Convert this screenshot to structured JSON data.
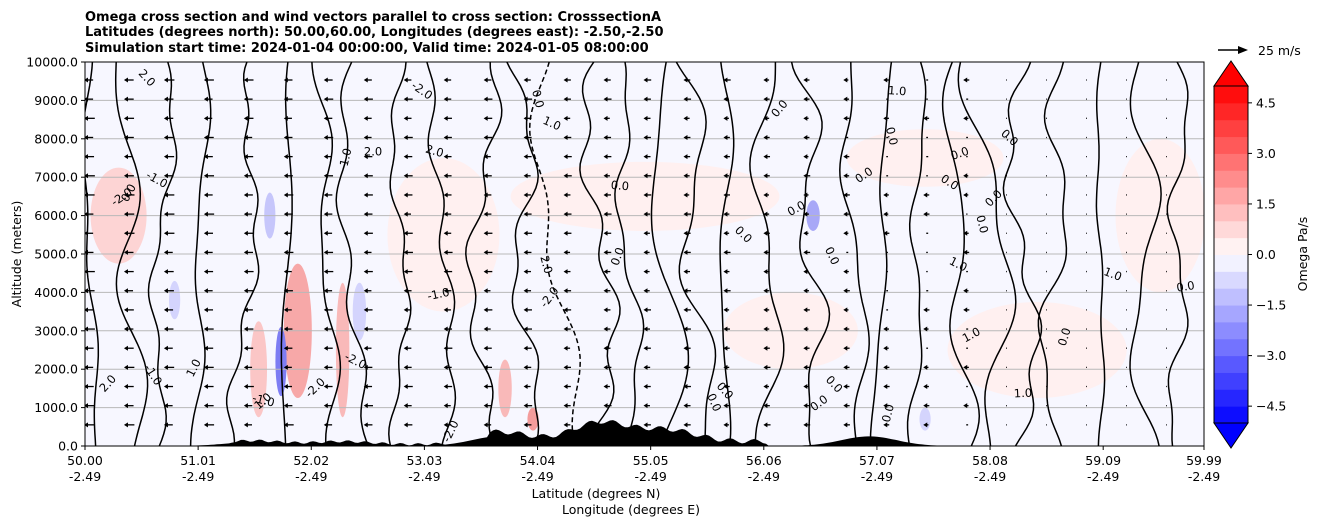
{
  "chart_data": {
    "type": "contourf",
    "title_lines": [
      "Omega cross section and wind vectors parallel to cross section: CrosssectionA",
      "Latitudes (degrees north): 50.00,60.00, Longitudes (degrees east): -2.50,-2.50",
      "Simulation start time: 2024-01-04 00:00:00, Valid time: 2024-01-05 08:00:00"
    ],
    "x_ticks": [
      {
        "lat": "50.00",
        "lon": "-2.49"
      },
      {
        "lat": "51.01",
        "lon": "-2.49"
      },
      {
        "lat": "52.02",
        "lon": "-2.49"
      },
      {
        "lat": "53.03",
        "lon": "-2.49"
      },
      {
        "lat": "54.04",
        "lon": "-2.49"
      },
      {
        "lat": "55.05",
        "lon": "-2.49"
      },
      {
        "lat": "56.06",
        "lon": "-2.49"
      },
      {
        "lat": "57.07",
        "lon": "-2.49"
      },
      {
        "lat": "58.08",
        "lon": "-2.49"
      },
      {
        "lat": "59.09",
        "lon": "-2.49"
      },
      {
        "lat": "59.99",
        "lon": "-2.49"
      }
    ],
    "x_range": [
      50.0,
      59.99
    ],
    "xlabel_1": "Latitude (degrees N)",
    "xlabel_2": "Longitude (degrees E)",
    "ylabel": "Altitude (meters)",
    "y_ticks": [
      "0.0",
      "1000.0",
      "2000.0",
      "3000.0",
      "4000.0",
      "5000.0",
      "6000.0",
      "7000.0",
      "8000.0",
      "9000.0",
      "10000.0"
    ],
    "ylim": [
      0,
      10000
    ],
    "grid": "horizontal",
    "colorbar": {
      "label": "Omega Pa/s",
      "range": [
        -5.0,
        5.0
      ],
      "ticks": [
        "4.5",
        "3.0",
        "1.5",
        "0.0",
        "−1.5",
        "−3.0",
        "−4.5"
      ],
      "tick_values": [
        4.5,
        3.0,
        1.5,
        0.0,
        -1.5,
        -3.0,
        -4.5
      ],
      "colormap": "bwr",
      "extend": "both"
    },
    "vector_key": "25 m/s",
    "contour_levels": [
      -3.0,
      -2.0,
      -1.0,
      0.0,
      1.0,
      2.0
    ],
    "contour_labels": [
      "0.0",
      "1.0",
      "-1.0",
      "2.0",
      "-2.0"
    ],
    "terrain_peaks_km": [
      {
        "lat": 51.5,
        "h": 100
      },
      {
        "lat": 52.3,
        "h": 80
      },
      {
        "lat": 53.7,
        "h": 250
      },
      {
        "lat": 54.6,
        "h": 500
      },
      {
        "lat": 55.2,
        "h": 300
      },
      {
        "lat": 57.0,
        "h": 250
      }
    ]
  }
}
